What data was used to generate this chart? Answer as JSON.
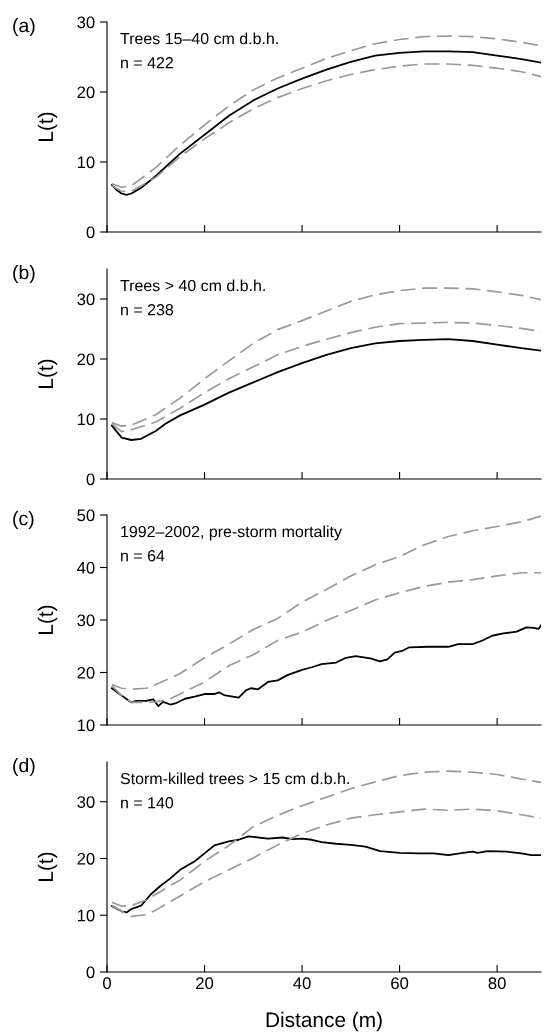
{
  "chart_data": [
    {
      "type": "line",
      "title": "(a)",
      "ylabel": "L(t)",
      "annotations": [
        "Trees 15–40 cm d.b.h.",
        "n = 422"
      ],
      "xlim": [
        0,
        89
      ],
      "xticks": [
        {
          "value": 0,
          "label": null
        },
        {
          "value": 20,
          "label": null
        },
        {
          "value": 40,
          "label": null
        },
        {
          "value": 60,
          "label": null
        },
        {
          "value": 80,
          "label": null
        }
      ],
      "ylim": [
        0,
        30
      ],
      "yticks": [
        0,
        10,
        20,
        30
      ],
      "tick_labels": "y",
      "grid": false,
      "series": [
        {
          "color": "#000000",
          "line_style": "solid",
          "x": [
            1,
            2,
            3,
            4,
            5,
            7,
            10,
            15,
            20,
            25,
            30,
            35,
            40,
            45,
            50,
            55,
            60,
            65,
            70,
            75,
            80,
            85,
            89
          ],
          "values": [
            6.7,
            6.0,
            5.5,
            5.3,
            5.5,
            6.3,
            8.0,
            11.2,
            13.9,
            16.6,
            18.8,
            20.5,
            21.9,
            23.2,
            24.3,
            25.2,
            25.6,
            25.8,
            25.8,
            25.7,
            25.2,
            24.7,
            24.2
          ]
        },
        {
          "color": "#999999",
          "line_style": "dashed",
          "x": [
            1,
            3,
            5,
            10,
            15,
            20,
            25,
            30,
            35,
            40,
            45,
            50,
            55,
            60,
            65,
            70,
            75,
            80,
            85,
            89
          ],
          "values": [
            6.9,
            6.4,
            6.6,
            9.2,
            12.4,
            15.3,
            18.0,
            20.3,
            22.0,
            23.4,
            24.8,
            25.9,
            26.9,
            27.5,
            27.9,
            28.0,
            27.9,
            27.6,
            27.1,
            26.6
          ]
        },
        {
          "color": "#999999",
          "line_style": "dashed",
          "x": [
            1,
            3,
            5,
            10,
            15,
            20,
            25,
            30,
            35,
            40,
            45,
            50,
            55,
            60,
            65,
            70,
            75,
            80,
            85,
            89
          ],
          "values": [
            6.6,
            5.8,
            5.8,
            7.8,
            10.8,
            13.3,
            15.6,
            17.6,
            19.2,
            20.5,
            21.6,
            22.5,
            23.2,
            23.7,
            24.0,
            24.0,
            23.8,
            23.4,
            22.9,
            22.2
          ]
        }
      ]
    },
    {
      "type": "line",
      "title": "(b)",
      "ylabel": "L(t)",
      "annotations": [
        "Trees > 40 cm d.b.h.",
        "n = 238"
      ],
      "xlim": [
        0,
        89
      ],
      "xticks": [
        {
          "value": 0,
          "label": null
        },
        {
          "value": 20,
          "label": null
        },
        {
          "value": 40,
          "label": null
        },
        {
          "value": 60,
          "label": null
        },
        {
          "value": 80,
          "label": null
        }
      ],
      "ylim": [
        0,
        35
      ],
      "yticks": [
        0,
        10,
        20,
        30
      ],
      "tick_labels": "y",
      "grid": false,
      "series": [
        {
          "color": "#000000",
          "line_style": "solid",
          "x": [
            1,
            3,
            5,
            7,
            10,
            12,
            15,
            20,
            25,
            30,
            35,
            40,
            45,
            50,
            55,
            60,
            65,
            70,
            75,
            80,
            85,
            89
          ],
          "values": [
            8.9,
            6.9,
            6.5,
            6.7,
            8.0,
            9.2,
            10.6,
            12.4,
            14.4,
            16.1,
            17.8,
            19.3,
            20.7,
            21.8,
            22.6,
            23.0,
            23.2,
            23.3,
            23.0,
            22.4,
            21.8,
            21.4
          ]
        },
        {
          "color": "#999999",
          "line_style": "dashed",
          "x": [
            1,
            3,
            5,
            10,
            15,
            20,
            25,
            30,
            35,
            40,
            45,
            50,
            55,
            60,
            65,
            70,
            75,
            80,
            85,
            89
          ],
          "values": [
            9.4,
            8.8,
            9.0,
            10.7,
            13.5,
            16.7,
            19.7,
            22.6,
            24.9,
            26.4,
            28.0,
            29.6,
            30.7,
            31.4,
            31.8,
            31.8,
            31.7,
            31.2,
            30.6,
            29.9
          ]
        },
        {
          "color": "#999999",
          "line_style": "dashed",
          "x": [
            1,
            3,
            5,
            10,
            15,
            20,
            25,
            30,
            35,
            40,
            45,
            50,
            55,
            60,
            65,
            70,
            75,
            80,
            85,
            89
          ],
          "values": [
            9.2,
            7.9,
            8.2,
            9.5,
            11.8,
            14.4,
            16.7,
            18.7,
            20.7,
            22.1,
            23.3,
            24.4,
            25.3,
            25.9,
            26.0,
            26.1,
            26.0,
            25.6,
            25.1,
            24.6
          ]
        }
      ]
    },
    {
      "type": "line",
      "title": "(c)",
      "ylabel": "L(t)",
      "annotations": [
        "1992–2002, pre-storm mortality",
        "n = 64"
      ],
      "xlim": [
        0,
        89
      ],
      "xticks": [
        {
          "value": 0,
          "label": null
        },
        {
          "value": 20,
          "label": null
        },
        {
          "value": 40,
          "label": null
        },
        {
          "value": 60,
          "label": null
        },
        {
          "value": 80,
          "label": null
        }
      ],
      "ylim": [
        10,
        50
      ],
      "yticks": [
        10,
        20,
        30,
        40,
        50
      ],
      "tick_labels": "y",
      "grid": false,
      "series": [
        {
          "color": "#000000",
          "line_style": "solid",
          "x": [
            1,
            3,
            5,
            6,
            8,
            9.5,
            10.5,
            11.5,
            13,
            14,
            16,
            18,
            20,
            22,
            23,
            24,
            27,
            28.5,
            29.5,
            31,
            33,
            35,
            37,
            40,
            42,
            44,
            47,
            49,
            51,
            54,
            56,
            57.5,
            59,
            60.5,
            62,
            66,
            70,
            72,
            75,
            77,
            79,
            81,
            84,
            86,
            87.5,
            88.5,
            89
          ],
          "values": [
            17.0,
            15.6,
            14.3,
            14.6,
            14.6,
            14.9,
            13.6,
            14.4,
            13.9,
            14.1,
            15.0,
            15.4,
            15.9,
            15.9,
            16.2,
            15.7,
            15.2,
            16.6,
            17.0,
            16.8,
            18.2,
            18.5,
            19.5,
            20.5,
            21.0,
            21.6,
            21.9,
            22.8,
            23.1,
            22.7,
            22.1,
            22.5,
            23.8,
            24.1,
            24.8,
            24.9,
            24.9,
            25.4,
            25.4,
            26.1,
            27.0,
            27.4,
            27.8,
            28.6,
            28.5,
            28.3,
            29.0
          ]
        },
        {
          "color": "#999999",
          "line_style": "dashed",
          "x": [
            1,
            3,
            5,
            8,
            10,
            15,
            20,
            25,
            30,
            35,
            40,
            45,
            50,
            55,
            60,
            65,
            70,
            75,
            80,
            85,
            89
          ],
          "values": [
            17.7,
            17.0,
            16.8,
            17.0,
            17.7,
            19.8,
            22.8,
            25.4,
            28.2,
            30.3,
            33.4,
            35.8,
            38.4,
            40.5,
            42.1,
            44.3,
            45.9,
            47.0,
            47.8,
            48.7,
            49.8
          ]
        },
        {
          "color": "#999999",
          "line_style": "dashed",
          "x": [
            1,
            3,
            5,
            8,
            10,
            13,
            15,
            20,
            25,
            30,
            35,
            40,
            45,
            50,
            55,
            60,
            65,
            70,
            75,
            80,
            85,
            89
          ],
          "values": [
            17.5,
            15.6,
            14.3,
            14.3,
            14.4,
            15.0,
            15.9,
            18.2,
            21.3,
            23.4,
            26.1,
            27.7,
            29.9,
            31.8,
            33.8,
            35.2,
            36.4,
            37.2,
            37.7,
            38.4,
            39.0,
            39.0
          ]
        }
      ]
    },
    {
      "type": "line",
      "title": "(d)",
      "ylabel": "L(t)",
      "xlabel": "Distance (m)",
      "annotations": [
        "Storm-killed trees > 15 cm d.b.h.",
        "n = 140"
      ],
      "xlim": [
        0,
        89
      ],
      "xticks": [
        0,
        20,
        40,
        60,
        80
      ],
      "ylim": [
        0,
        37
      ],
      "yticks": [
        0,
        10,
        20,
        30
      ],
      "grid": false,
      "series": [
        {
          "color": "#000000",
          "line_style": "solid",
          "x": [
            1,
            3,
            4,
            5,
            7,
            9,
            11,
            13,
            15,
            18,
            20,
            22,
            25,
            27,
            29,
            30,
            33,
            36,
            38,
            40,
            42,
            44,
            47,
            50,
            53,
            56,
            60,
            64,
            67,
            70,
            73,
            75,
            76,
            78,
            82,
            85,
            87,
            89
          ],
          "values": [
            11.6,
            10.7,
            10.5,
            11.1,
            11.7,
            13.7,
            15.2,
            16.5,
            18.0,
            19.5,
            20.9,
            22.3,
            23.0,
            23.3,
            23.9,
            23.8,
            23.5,
            23.7,
            23.4,
            23.5,
            23.3,
            22.9,
            22.6,
            22.4,
            22.1,
            21.3,
            21.0,
            20.9,
            20.9,
            20.6,
            21.0,
            21.2,
            21.0,
            21.3,
            21.2,
            20.9,
            20.6,
            20.6
          ]
        },
        {
          "color": "#999999",
          "line_style": "dashed",
          "x": [
            1,
            3,
            5,
            8,
            10,
            15,
            20,
            25,
            30,
            35,
            40,
            45,
            50,
            55,
            60,
            65,
            70,
            75,
            80,
            85,
            89
          ],
          "values": [
            12.3,
            11.6,
            11.7,
            12.7,
            13.7,
            16.2,
            19.5,
            22.3,
            25.6,
            27.6,
            29.3,
            30.8,
            32.3,
            33.5,
            34.6,
            35.2,
            35.4,
            35.2,
            34.8,
            34.0,
            33.4
          ]
        },
        {
          "color": "#999999",
          "line_style": "dashed",
          "x": [
            1,
            3,
            5,
            8,
            10,
            15,
            20,
            25,
            30,
            35,
            40,
            45,
            50,
            55,
            60,
            65,
            70,
            75,
            80,
            85,
            89
          ],
          "values": [
            11.7,
            10.7,
            9.8,
            10.1,
            10.9,
            13.4,
            15.9,
            18.0,
            20.1,
            22.4,
            24.4,
            25.9,
            27.1,
            27.7,
            28.2,
            28.7,
            28.5,
            28.7,
            28.4,
            27.7,
            27.1
          ]
        }
      ]
    }
  ]
}
